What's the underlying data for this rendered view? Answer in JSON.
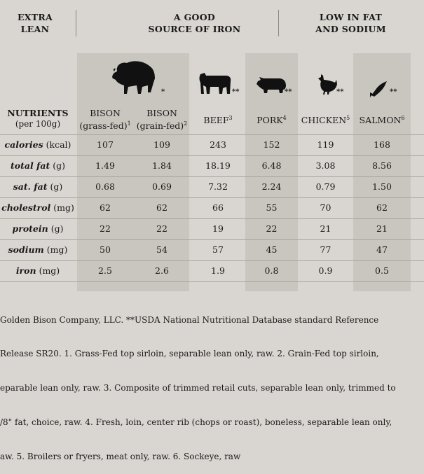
{
  "groups": [
    {
      "line1": "EXTRA",
      "line2": "LEAN"
    },
    {
      "line1": "A GOOD",
      "line2": "SOURCE OF IRON"
    },
    {
      "line1": "LOW IN FAT",
      "line2": "AND SODIUM"
    }
  ],
  "stars": {
    "bison": "*",
    "beef": "**",
    "pork": "**",
    "chicken": "**",
    "salmon": "**"
  },
  "nutrients_header": {
    "line1": "NUTRIENTS",
    "line2": "(per 100g)"
  },
  "columns": [
    {
      "line1": "BISON",
      "line2": "(grass-fed)",
      "note": "1"
    },
    {
      "line1": "BISON",
      "line2": "(grain-fed)",
      "note": "2"
    },
    {
      "line1": "BEEF",
      "line2": "",
      "note": "3"
    },
    {
      "line1": "PORK",
      "line2": "",
      "note": "4"
    },
    {
      "line1": "CHICKEN",
      "line2": "",
      "note": "5"
    },
    {
      "line1": "SALMON",
      "line2": "",
      "note": "6"
    }
  ],
  "rows": [
    {
      "name": "calories",
      "unit": "(kcal)",
      "values": [
        "107",
        "109",
        "243",
        "152",
        "119",
        "168"
      ]
    },
    {
      "name": "total fat",
      "unit": "(g)",
      "values": [
        "1.49",
        "1.84",
        "18.19",
        "6.48",
        "3.08",
        "8.56"
      ]
    },
    {
      "name": "sat. fat",
      "unit": "(g)",
      "values": [
        "0.68",
        "0.69",
        "7.32",
        "2.24",
        "0.79",
        "1.50"
      ]
    },
    {
      "name": "cholestrol",
      "unit": "(mg)",
      "values": [
        "62",
        "62",
        "66",
        "55",
        "70",
        "62"
      ]
    },
    {
      "name": "protein",
      "unit": "(g)",
      "values": [
        "22",
        "22",
        "19",
        "22",
        "21",
        "21"
      ]
    },
    {
      "name": "sodium",
      "unit": "(mg)",
      "values": [
        "50",
        "54",
        "57",
        "45",
        "77",
        "47"
      ]
    },
    {
      "name": "iron",
      "unit": "(mg)",
      "values": [
        "2.5",
        "2.6",
        "1.9",
        "0.8",
        "0.9",
        "0.5"
      ]
    }
  ],
  "footnote_lines": [
    "Golden Bison Company, LLC. **USDA National Nutritional Database standard Reference",
    "Release SR20. 1. Grass-Fed top sirloin, separable lean only, raw. 2. Grain-Fed top sirloin,",
    "eparable lean only, raw. 3. Composite of trimmed retail cuts, separable lean only, trimmed to",
    "/8\" fat, choice, raw. 4. Fresh, loin, center rib (chops or roast), boneless, separable lean only,",
    "aw. 5. Broilers or fryers, meat only, raw. 6. Sockeye, raw"
  ],
  "colors": {
    "background": "#d9d6d1",
    "band": "#c9c5bf",
    "ink": "#1a1a1a"
  }
}
